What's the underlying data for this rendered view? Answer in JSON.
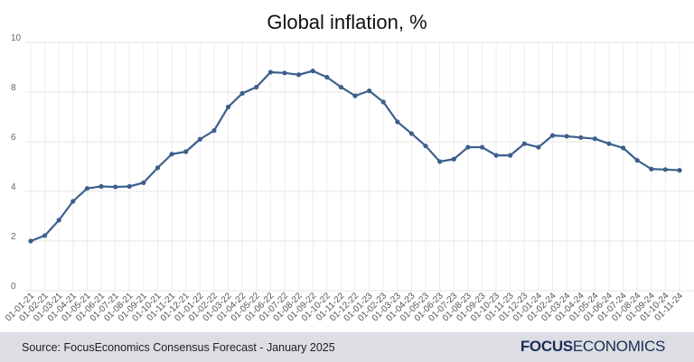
{
  "chart_data": {
    "type": "line",
    "title": "Global inflation, %",
    "xlabel": "",
    "ylabel": "",
    "ylim": [
      0,
      10
    ],
    "yticks": [
      0,
      2,
      4,
      6,
      8,
      10
    ],
    "grid": true,
    "categories": [
      "01-01-21",
      "01-02-21",
      "01-03-21",
      "01-04-21",
      "01-05-21",
      "01-06-21",
      "01-07-21",
      "01-08-21",
      "01-09-21",
      "01-10-21",
      "01-11-21",
      "01-12-21",
      "01-01-22",
      "01-02-22",
      "01-03-22",
      "01-04-22",
      "01-05-22",
      "01-06-22",
      "01-07-22",
      "01-08-22",
      "01-09-22",
      "01-10-22",
      "01-11-22",
      "01-12-22",
      "01-01-23",
      "01-02-23",
      "01-03-23",
      "01-04-23",
      "01-05-23",
      "01-06-23",
      "01-07-23",
      "01-08-23",
      "01-09-23",
      "01-10-23",
      "01-11-23",
      "01-12-23",
      "01-01-24",
      "01-02-24",
      "01-03-24",
      "01-04-24",
      "01-05-24",
      "01-06-24",
      "01-07-24",
      "01-08-24",
      "01-09-24",
      "01-10-24",
      "01-11-24"
    ],
    "series": [
      {
        "values": [
          2.0,
          2.22,
          2.84,
          3.6,
          4.12,
          4.2,
          4.18,
          4.2,
          4.35,
          4.95,
          5.5,
          5.6,
          6.1,
          6.45,
          7.4,
          7.95,
          8.2,
          8.8,
          8.77,
          8.7,
          8.85,
          8.6,
          8.2,
          7.85,
          8.05,
          7.6,
          6.8,
          6.33,
          5.83,
          5.2,
          5.3,
          5.78,
          5.78,
          5.45,
          5.45,
          5.92,
          5.78,
          6.25,
          6.22,
          6.17,
          6.12,
          5.92,
          5.75,
          5.25,
          4.9,
          4.88,
          4.85
        ],
        "color": "#3c5f8c"
      }
    ]
  },
  "footer": {
    "source": "Source: FocusEconomics Consensus Forecast - January 2025",
    "logo_bold": "FOCUS",
    "logo_regular": "ECONOMICS",
    "background": "#dcdee3"
  }
}
